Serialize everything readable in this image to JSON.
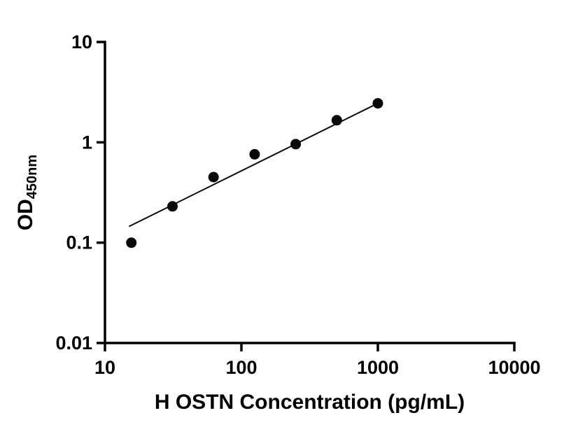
{
  "chart_data": {
    "type": "scatter",
    "title": "",
    "xlabel": "H OSTN Concentration (pg/mL)",
    "ylabel_main": "OD",
    "ylabel_sub": "450nm",
    "x_scale": "log",
    "y_scale": "log",
    "xlim": [
      10,
      10000
    ],
    "ylim": [
      0.01,
      10
    ],
    "x_ticks": [
      10,
      100,
      1000,
      10000
    ],
    "x_tick_labels": [
      "10",
      "100",
      "1000",
      "10000"
    ],
    "y_ticks": [
      0.01,
      0.1,
      1,
      10
    ],
    "y_tick_labels": [
      "0.01",
      "0.1",
      "1",
      "10"
    ],
    "grid": "off",
    "legend": "none",
    "points": [
      {
        "x": 15.6,
        "y": 0.1
      },
      {
        "x": 31.25,
        "y": 0.23
      },
      {
        "x": 62.5,
        "y": 0.45
      },
      {
        "x": 125,
        "y": 0.76
      },
      {
        "x": 250,
        "y": 0.96
      },
      {
        "x": 500,
        "y": 1.66
      },
      {
        "x": 1000,
        "y": 2.45
      }
    ],
    "trend_line": {
      "x_start": 15,
      "y_start": 0.145,
      "x_end": 1000,
      "y_end": 2.45
    },
    "marker_color": "#0a0a0a",
    "line_color": "#0a0a0a",
    "axis_color": "#000000",
    "background_color": "#ffffff"
  }
}
